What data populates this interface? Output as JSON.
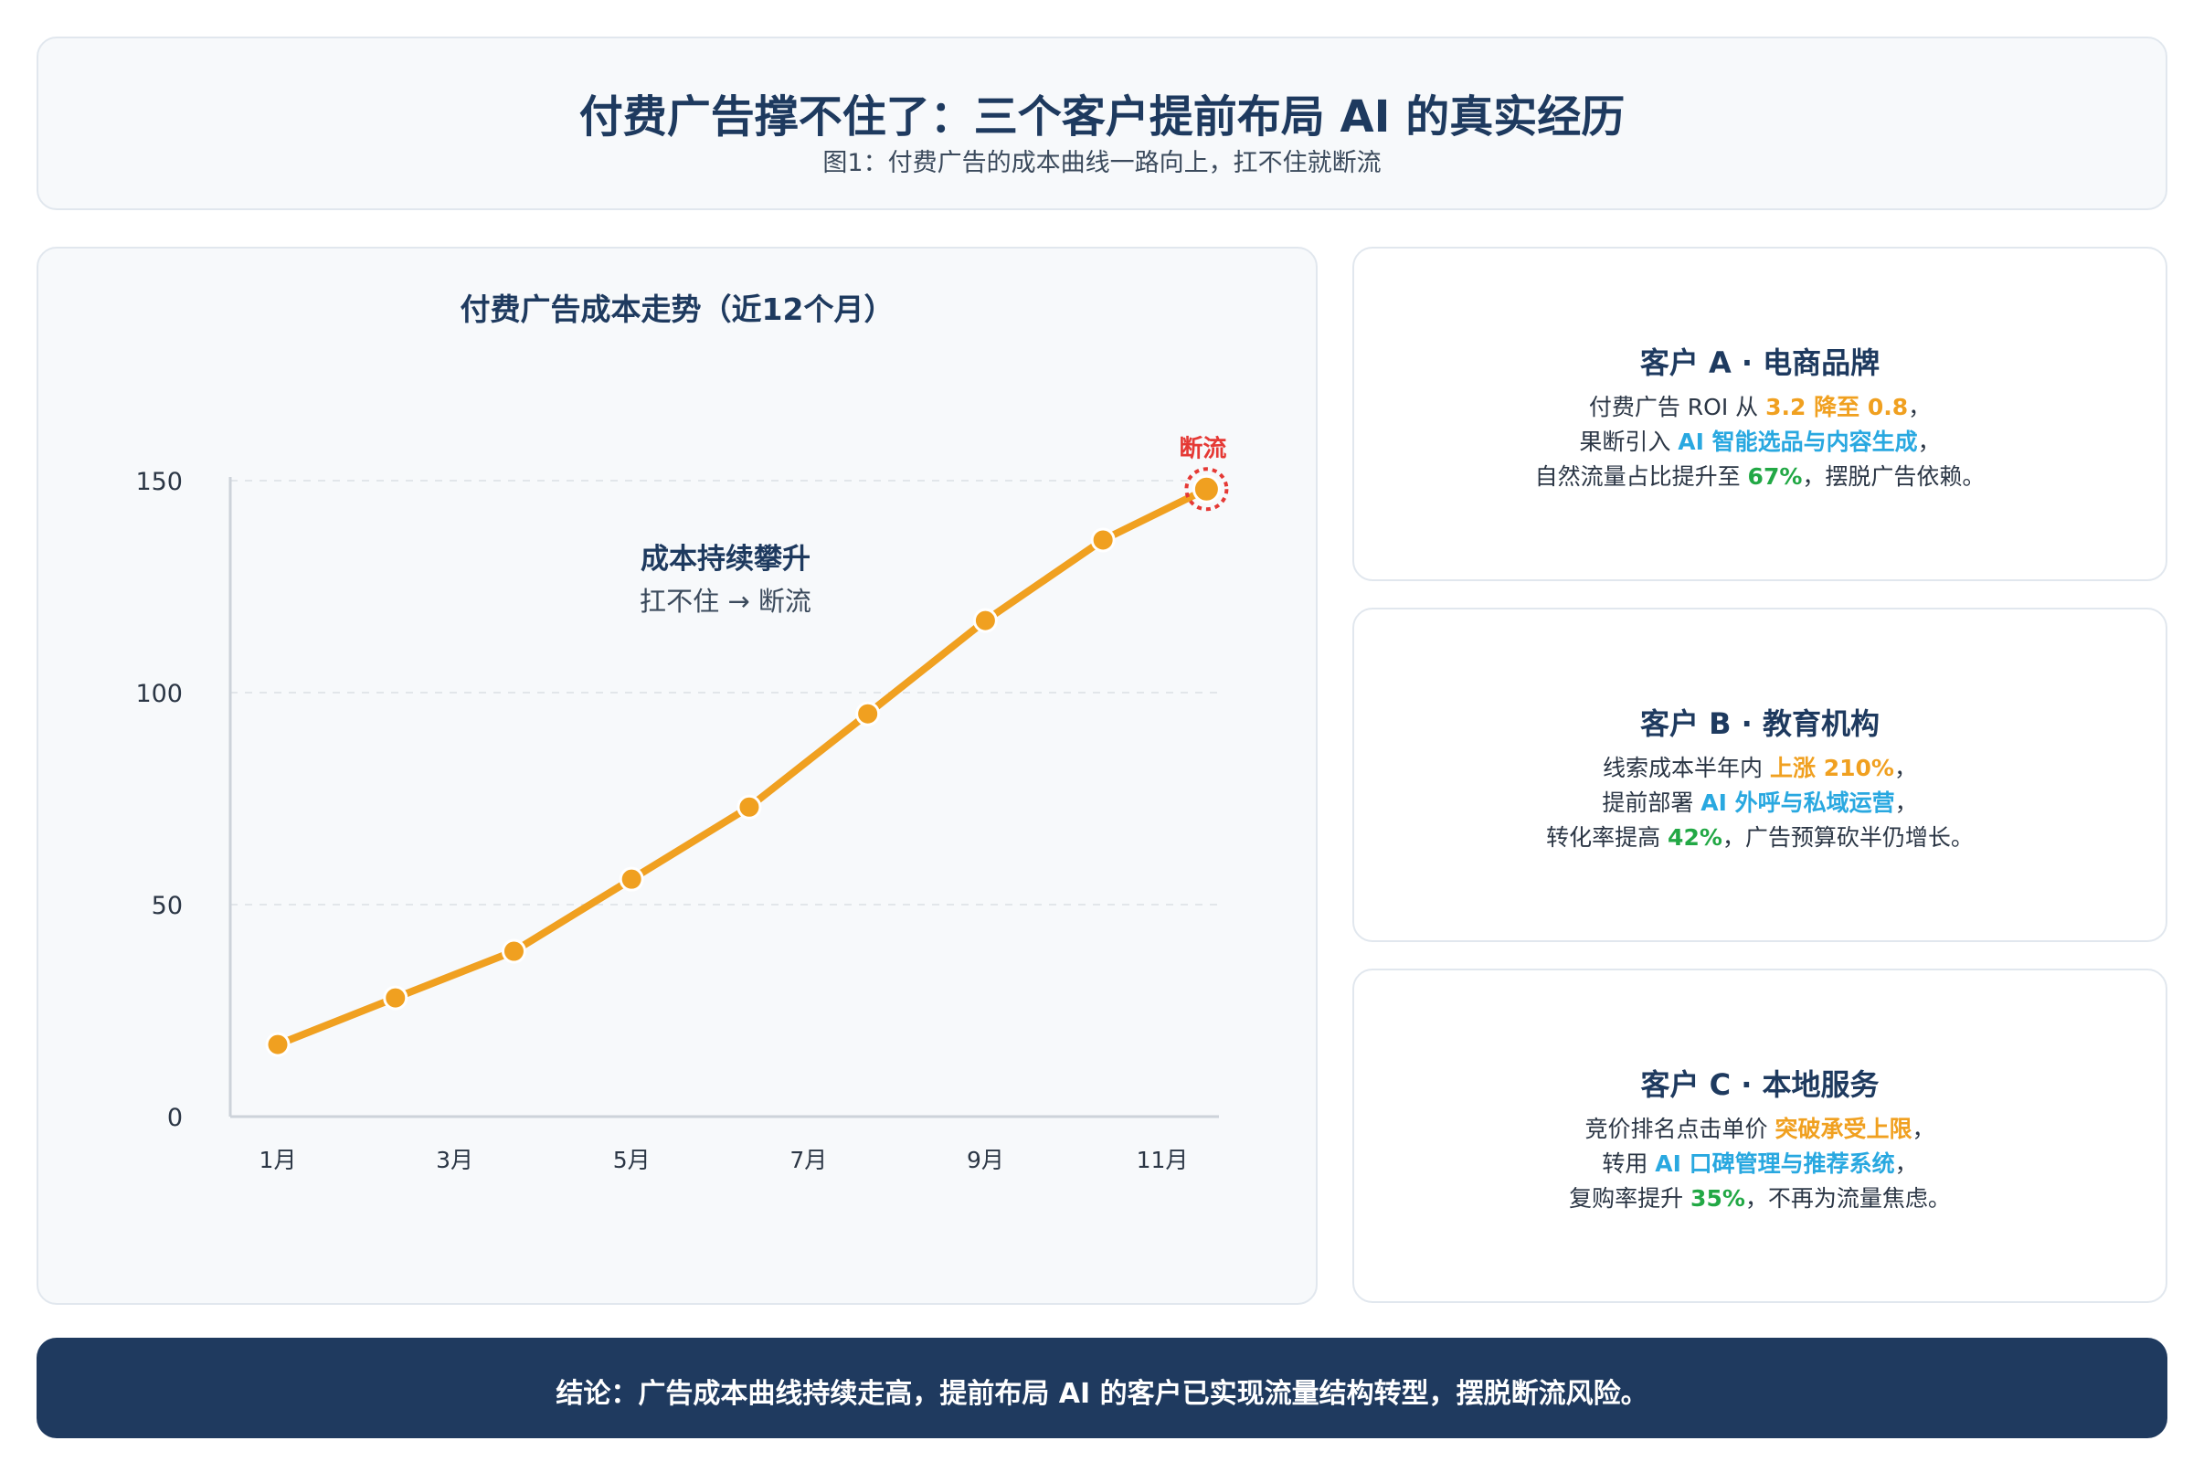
{
  "header": {
    "title": "付费广告撑不住了：三个客户提前布局 AI 的真实经历",
    "subtitle": "图1：付费广告的成本曲线一路向上，扛不住就断流"
  },
  "chart_data": {
    "type": "line",
    "title": "付费广告成本走势（近12个月）",
    "xlabel": "",
    "ylabel": "",
    "x_tick_labels": [
      "1月",
      "3月",
      "5月",
      "7月",
      "9月",
      "11月"
    ],
    "y_ticks": [
      0,
      50,
      100,
      150
    ],
    "ylim": [
      0,
      150
    ],
    "grid": "horizontal dashed",
    "series": [
      {
        "color": "#f0a020",
        "x": [
          1,
          2.33,
          3.67,
          5,
          6.33,
          7.67,
          9,
          10.33,
          11.5
        ],
        "values": [
          17,
          28,
          39,
          56,
          73,
          95,
          117,
          136,
          148
        ]
      }
    ],
    "annotations": {
      "center_title": "成本持续攀升",
      "center_sub": "扛不住 → 断流",
      "endpoint_label": "断流",
      "endpoint_color": "#e53935"
    }
  },
  "clients": [
    {
      "title": "客户 A · 电商品牌",
      "l1": {
        "a": "付费广告 ROI 从 ",
        "b": "3.2 降至 0.8",
        "c": "，"
      },
      "l2": {
        "a": "果断引入 ",
        "b": "AI 智能选品与内容生成",
        "c": "，"
      },
      "l3": {
        "a": "自然流量占比提升至 ",
        "b": "67%",
        "c": "，摆脱广告依赖。"
      }
    },
    {
      "title": "客户 B · 教育机构",
      "l1": {
        "a": "线索成本半年内 ",
        "b": "上涨 210%",
        "c": "，"
      },
      "l2": {
        "a": "提前部署 ",
        "b": "AI 外呼与私域运营",
        "c": "，"
      },
      "l3": {
        "a": "转化率提高 ",
        "b": "42%",
        "c": "，广告预算砍半仍增长。"
      }
    },
    {
      "title": "客户 C · 本地服务",
      "l1": {
        "a": "竞价排名点击单价 ",
        "b": "突破承受上限",
        "c": "，"
      },
      "l2": {
        "a": "转用 ",
        "b": "AI 口碑管理与推荐系统",
        "c": "，"
      },
      "l3": {
        "a": "复购率提升 ",
        "b": "35%",
        "c": "，不再为流量焦虑。"
      }
    }
  ],
  "footer": {
    "conclusion": "结论：广告成本曲线持续走高，提前布局 AI 的客户已实现流量结构转型，摆脱断流风险。"
  },
  "colors": {
    "navy": "#1e3a5f",
    "orange": "#f0a020",
    "blue": "#29a8e0",
    "green": "#22a845",
    "red": "#e53935"
  }
}
